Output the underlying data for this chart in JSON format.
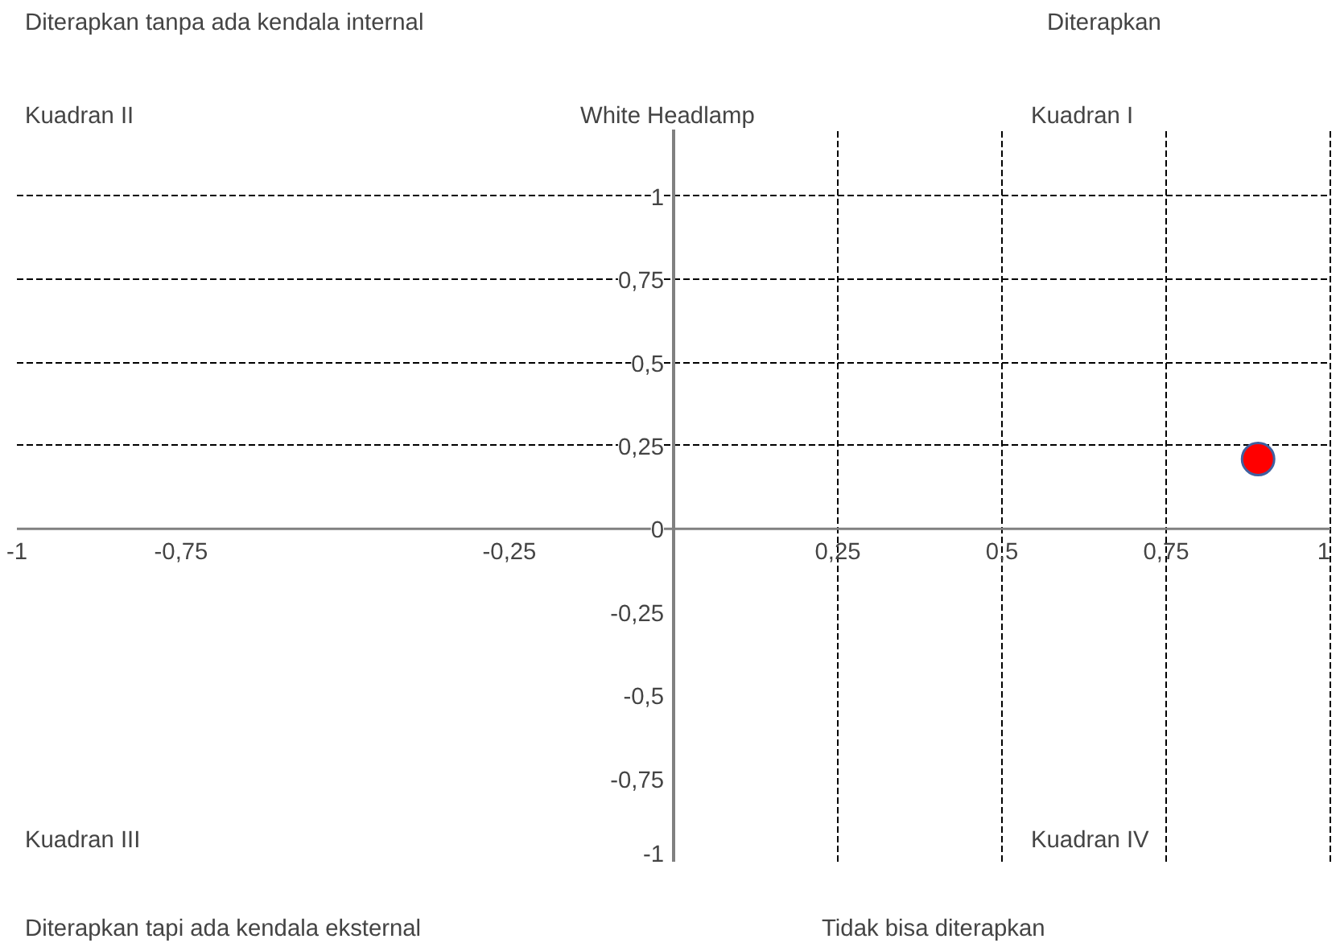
{
  "chart_data": {
    "type": "scatter",
    "title": "White Headlamp",
    "annotations": [
      "Diterapkan tanpa ada kendala internal",
      "Diterapkan",
      "Kuadran II",
      "Kuadran I",
      "Kuadran III",
      "Kuadran IV",
      "Diterapkan tapi ada kendala eksternal",
      "Tidak bisa diterapkan"
    ],
    "x": [
      0.89
    ],
    "series": [
      {
        "color": "#ff0000",
        "values": [
          0.21
        ]
      }
    ],
    "marker": "circle",
    "grid": true,
    "xlim": [
      -1,
      1
    ],
    "ylim": [
      -1,
      1.2
    ],
    "xticks": [
      {
        "value": -1,
        "label": "-1"
      },
      {
        "value": -0.75,
        "label": "-0,75"
      },
      {
        "value": -0.25,
        "label": "-0,25"
      },
      {
        "value": 0.25,
        "label": "0,25"
      },
      {
        "value": 0.5,
        "label": "0,5"
      },
      {
        "value": 0.75,
        "label": "0,75"
      },
      {
        "value": 1,
        "label": "1"
      }
    ],
    "yticks": [
      {
        "value": -1,
        "label": "-1"
      },
      {
        "value": -0.75,
        "label": "-0,75"
      },
      {
        "value": -0.5,
        "label": "-0,5"
      },
      {
        "value": -0.25,
        "label": "-0,25"
      },
      {
        "value": 0,
        "label": "0"
      },
      {
        "value": 0.25,
        "label": "0,25"
      },
      {
        "value": 0.5,
        "label": "0,5"
      },
      {
        "value": 0.75,
        "label": "0,75"
      },
      {
        "value": 1,
        "label": "1"
      }
    ]
  }
}
